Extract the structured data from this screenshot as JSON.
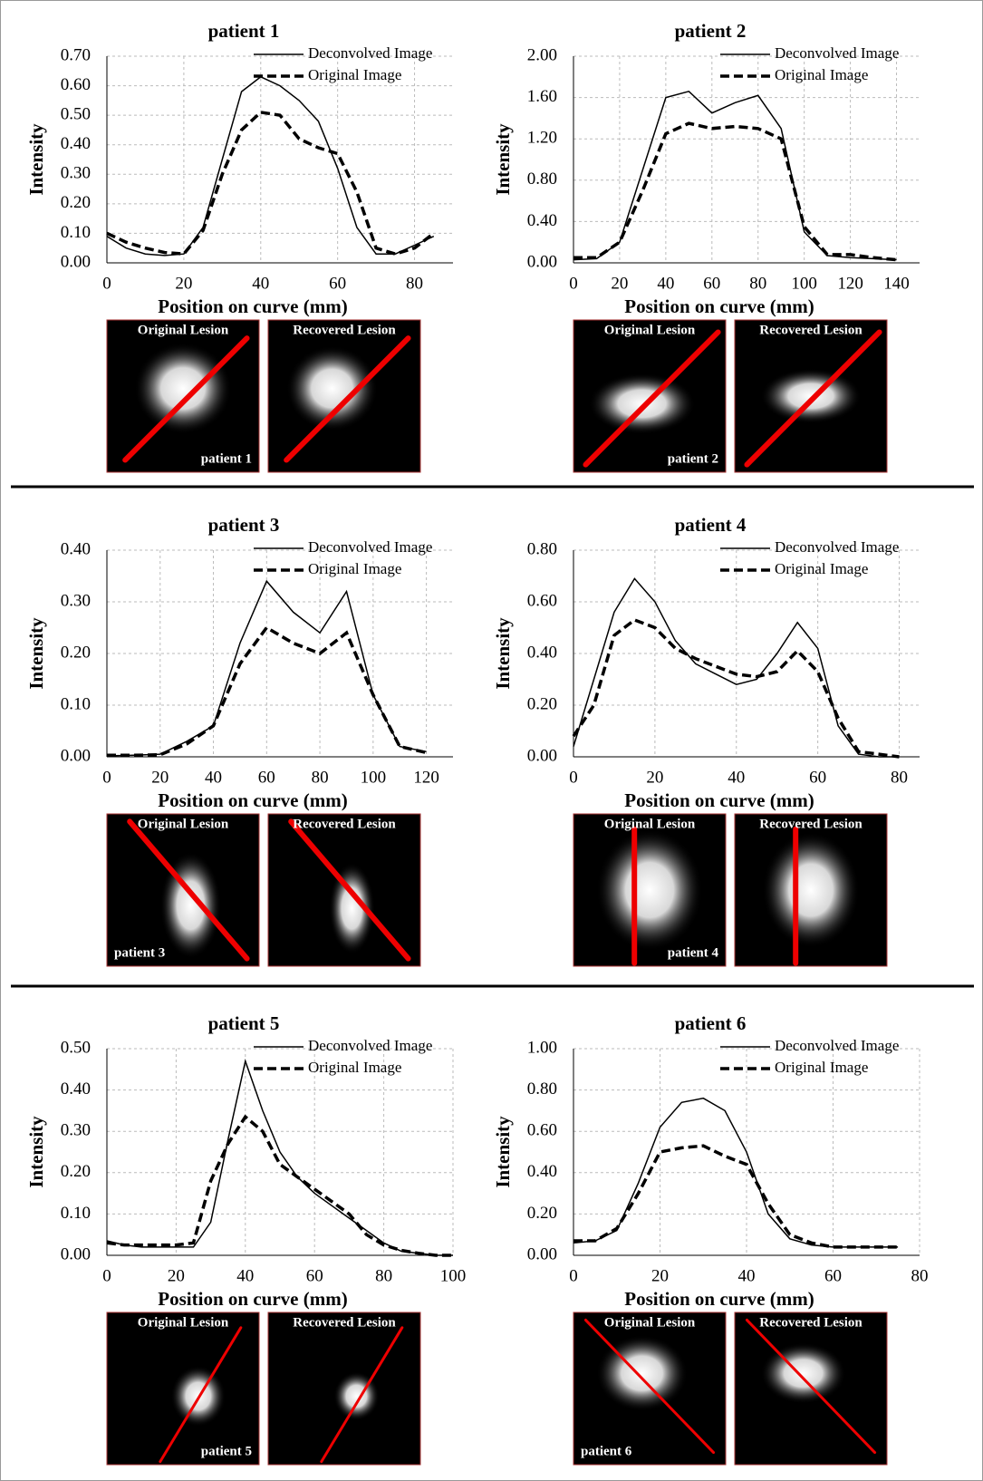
{
  "chart_data": [
    {
      "type": "line",
      "title": "patient 1",
      "x_label": "Position on curve (mm)",
      "y_label": "Intensity",
      "x": [
        0,
        5,
        10,
        15,
        20,
        25,
        30,
        35,
        40,
        45,
        50,
        55,
        60,
        65,
        70,
        75,
        80,
        85
      ],
      "series": [
        {
          "name": "Deconvolved Image",
          "color": "#000000",
          "dash": "solid",
          "values": [
            0.09,
            0.05,
            0.03,
            0.025,
            0.03,
            0.12,
            0.35,
            0.58,
            0.63,
            0.6,
            0.55,
            0.48,
            0.32,
            0.12,
            0.03,
            0.03,
            0.06,
            0.09
          ]
        },
        {
          "name": "Original Image",
          "color": "#000000",
          "dash": "dashed",
          "values": [
            0.1,
            0.07,
            0.05,
            0.035,
            0.03,
            0.11,
            0.3,
            0.45,
            0.51,
            0.5,
            0.42,
            0.39,
            0.37,
            0.24,
            0.05,
            0.03,
            0.05,
            0.1
          ]
        }
      ],
      "xlim": [
        0,
        90
      ],
      "xticks": [
        0,
        20,
        40,
        60,
        80
      ],
      "ylim": [
        0,
        0.7
      ],
      "yticks": [
        {
          "value": 0,
          "label": "0.00"
        },
        {
          "value": 0.1,
          "label": "0.10"
        },
        {
          "value": 0.2,
          "label": "0.20"
        },
        {
          "value": 0.3,
          "label": "0.30"
        },
        {
          "value": 0.4,
          "label": "0.40"
        },
        {
          "value": 0.5,
          "label": "0.50"
        },
        {
          "value": 0.6,
          "label": "0.60"
        },
        {
          "value": 0.7,
          "label": "0.70"
        }
      ],
      "grid": true,
      "image_labels": [
        "Original Lesion",
        "Recovered Lesion",
        "patient 1"
      ]
    },
    {
      "type": "line",
      "title": "patient 2",
      "x_label": "Position on curve (mm)",
      "y_label": "Intensity",
      "x": [
        0,
        10,
        20,
        30,
        40,
        50,
        60,
        70,
        80,
        90,
        100,
        110,
        120,
        130,
        140
      ],
      "series": [
        {
          "name": "Deconvolved Image",
          "color": "#000000",
          "dash": "solid",
          "values": [
            0.03,
            0.04,
            0.2,
            0.9,
            1.6,
            1.66,
            1.45,
            1.55,
            1.62,
            1.3,
            0.3,
            0.07,
            0.05,
            0.04,
            0.03
          ]
        },
        {
          "name": "Original Image",
          "color": "#000000",
          "dash": "dashed",
          "values": [
            0.05,
            0.05,
            0.2,
            0.7,
            1.25,
            1.35,
            1.3,
            1.32,
            1.3,
            1.2,
            0.35,
            0.08,
            0.08,
            0.05,
            0.03
          ]
        }
      ],
      "xlim": [
        0,
        150
      ],
      "xticks": [
        0,
        20,
        40,
        60,
        80,
        100,
        120,
        140
      ],
      "ylim": [
        0,
        2
      ],
      "yticks": [
        {
          "value": 0,
          "label": "0.00"
        },
        {
          "value": 0.4,
          "label": "0.40"
        },
        {
          "value": 0.8,
          "label": "0.80"
        },
        {
          "value": 1.2,
          "label": "1.20"
        },
        {
          "value": 1.6,
          "label": "1.60"
        },
        {
          "value": 2,
          "label": "2.00"
        }
      ],
      "grid": true,
      "image_labels": [
        "Original Lesion",
        "Recovered Lesion",
        "patient 2"
      ]
    },
    {
      "type": "line",
      "title": "patient 3",
      "x_label": "Position on curve (mm)",
      "y_label": "Intensity",
      "x": [
        0,
        10,
        20,
        30,
        40,
        50,
        60,
        70,
        80,
        90,
        100,
        110,
        120
      ],
      "series": [
        {
          "name": "Deconvolved Image",
          "color": "#000000",
          "dash": "solid",
          "values": [
            0.002,
            0.003,
            0.005,
            0.03,
            0.06,
            0.22,
            0.34,
            0.28,
            0.24,
            0.32,
            0.12,
            0.02,
            0.01
          ]
        },
        {
          "name": "Original Image",
          "color": "#000000",
          "dash": "dashed",
          "values": [
            0.003,
            0.003,
            0.004,
            0.025,
            0.06,
            0.18,
            0.25,
            0.22,
            0.2,
            0.24,
            0.12,
            0.02,
            0.008
          ]
        }
      ],
      "xlim": [
        0,
        130
      ],
      "xticks": [
        0,
        20,
        40,
        60,
        80,
        100,
        120
      ],
      "ylim": [
        0,
        0.4
      ],
      "yticks": [
        {
          "value": 0,
          "label": "0.00"
        },
        {
          "value": 0.1,
          "label": "0.10"
        },
        {
          "value": 0.2,
          "label": "0.20"
        },
        {
          "value": 0.3,
          "label": "0.30"
        },
        {
          "value": 0.4,
          "label": "0.40"
        }
      ],
      "grid": true,
      "image_labels": [
        "Original Lesion",
        "Recovered Lesion",
        "patient 3"
      ]
    },
    {
      "type": "line",
      "title": "patient 4",
      "x_label": "Position on curve (mm)",
      "y_label": "Intensity",
      "x": [
        0,
        5,
        10,
        15,
        20,
        25,
        30,
        35,
        40,
        45,
        50,
        55,
        60,
        65,
        70,
        75,
        80
      ],
      "series": [
        {
          "name": "Deconvolved Image",
          "color": "#000000",
          "dash": "solid",
          "values": [
            0.04,
            0.3,
            0.56,
            0.69,
            0.6,
            0.45,
            0.36,
            0.32,
            0.28,
            0.3,
            0.4,
            0.52,
            0.42,
            0.12,
            0.01,
            0,
            0
          ]
        },
        {
          "name": "Original Image",
          "color": "#000000",
          "dash": "dashed",
          "values": [
            0.08,
            0.2,
            0.47,
            0.53,
            0.5,
            0.42,
            0.38,
            0.35,
            0.32,
            0.31,
            0.33,
            0.41,
            0.33,
            0.15,
            0.02,
            0.01,
            0
          ]
        }
      ],
      "xlim": [
        0,
        85
      ],
      "xticks": [
        0,
        20,
        40,
        60,
        80
      ],
      "ylim": [
        0,
        0.8
      ],
      "yticks": [
        {
          "value": 0,
          "label": "0.00"
        },
        {
          "value": 0.2,
          "label": "0.20"
        },
        {
          "value": 0.4,
          "label": "0.40"
        },
        {
          "value": 0.6,
          "label": "0.60"
        },
        {
          "value": 0.8,
          "label": "0.80"
        }
      ],
      "grid": true,
      "image_labels": [
        "Original Lesion",
        "Recovered Lesion",
        "patient 4"
      ]
    },
    {
      "type": "line",
      "title": "patient 5",
      "x_label": "Position on curve (mm)",
      "y_label": "Intensity",
      "x": [
        0,
        5,
        10,
        15,
        20,
        25,
        30,
        35,
        40,
        45,
        50,
        55,
        60,
        65,
        70,
        75,
        80,
        85,
        90,
        95,
        100
      ],
      "series": [
        {
          "name": "Deconvolved Image",
          "color": "#000000",
          "dash": "solid",
          "values": [
            0.035,
            0.025,
            0.02,
            0.02,
            0.02,
            0.02,
            0.08,
            0.28,
            0.47,
            0.35,
            0.25,
            0.19,
            0.15,
            0.12,
            0.09,
            0.06,
            0.03,
            0.01,
            0.005,
            0,
            0
          ]
        },
        {
          "name": "Original Image",
          "color": "#000000",
          "dash": "dashed",
          "values": [
            0.03,
            0.025,
            0.025,
            0.025,
            0.025,
            0.03,
            0.18,
            0.27,
            0.335,
            0.3,
            0.22,
            0.19,
            0.16,
            0.13,
            0.1,
            0.05,
            0.025,
            0.012,
            0.005,
            0,
            0
          ]
        }
      ],
      "xlim": [
        0,
        100
      ],
      "xticks": [
        0,
        20,
        40,
        60,
        80,
        100
      ],
      "ylim": [
        0,
        0.5
      ],
      "yticks": [
        {
          "value": 0,
          "label": "0.00"
        },
        {
          "value": 0.1,
          "label": "0.10"
        },
        {
          "value": 0.2,
          "label": "0.20"
        },
        {
          "value": 0.3,
          "label": "0.30"
        },
        {
          "value": 0.4,
          "label": "0.40"
        },
        {
          "value": 0.5,
          "label": "0.50"
        }
      ],
      "grid": true,
      "image_labels": [
        "Original Lesion",
        "Recovered Lesion",
        "patient 5"
      ]
    },
    {
      "type": "line",
      "title": "patient 6",
      "x_label": "Position on curve (mm)",
      "y_label": "Intensity",
      "x": [
        0,
        5,
        10,
        15,
        20,
        25,
        30,
        35,
        40,
        45,
        50,
        55,
        60,
        65,
        70,
        75
      ],
      "series": [
        {
          "name": "Deconvolved Image",
          "color": "#000000",
          "dash": "solid",
          "values": [
            0.06,
            0.07,
            0.12,
            0.35,
            0.62,
            0.74,
            0.76,
            0.7,
            0.5,
            0.2,
            0.08,
            0.05,
            0.04,
            0.04,
            0.04,
            0.04
          ]
        },
        {
          "name": "Original Image",
          "color": "#000000",
          "dash": "dashed",
          "values": [
            0.07,
            0.07,
            0.13,
            0.3,
            0.5,
            0.52,
            0.53,
            0.48,
            0.44,
            0.25,
            0.1,
            0.06,
            0.04,
            0.04,
            0.04,
            0.04
          ]
        }
      ],
      "xlim": [
        0,
        80
      ],
      "xticks": [
        0,
        20,
        40,
        60,
        80
      ],
      "ylim": [
        0,
        1
      ],
      "yticks": [
        {
          "value": 0,
          "label": "0.00"
        },
        {
          "value": 0.2,
          "label": "0.20"
        },
        {
          "value": 0.4,
          "label": "0.40"
        },
        {
          "value": 0.6,
          "label": "0.60"
        },
        {
          "value": 0.8,
          "label": "0.80"
        },
        {
          "value": 1,
          "label": "1.00"
        }
      ],
      "grid": true,
      "image_labels": [
        "Original Lesion",
        "Recovered Lesion",
        "patient 6"
      ]
    }
  ]
}
